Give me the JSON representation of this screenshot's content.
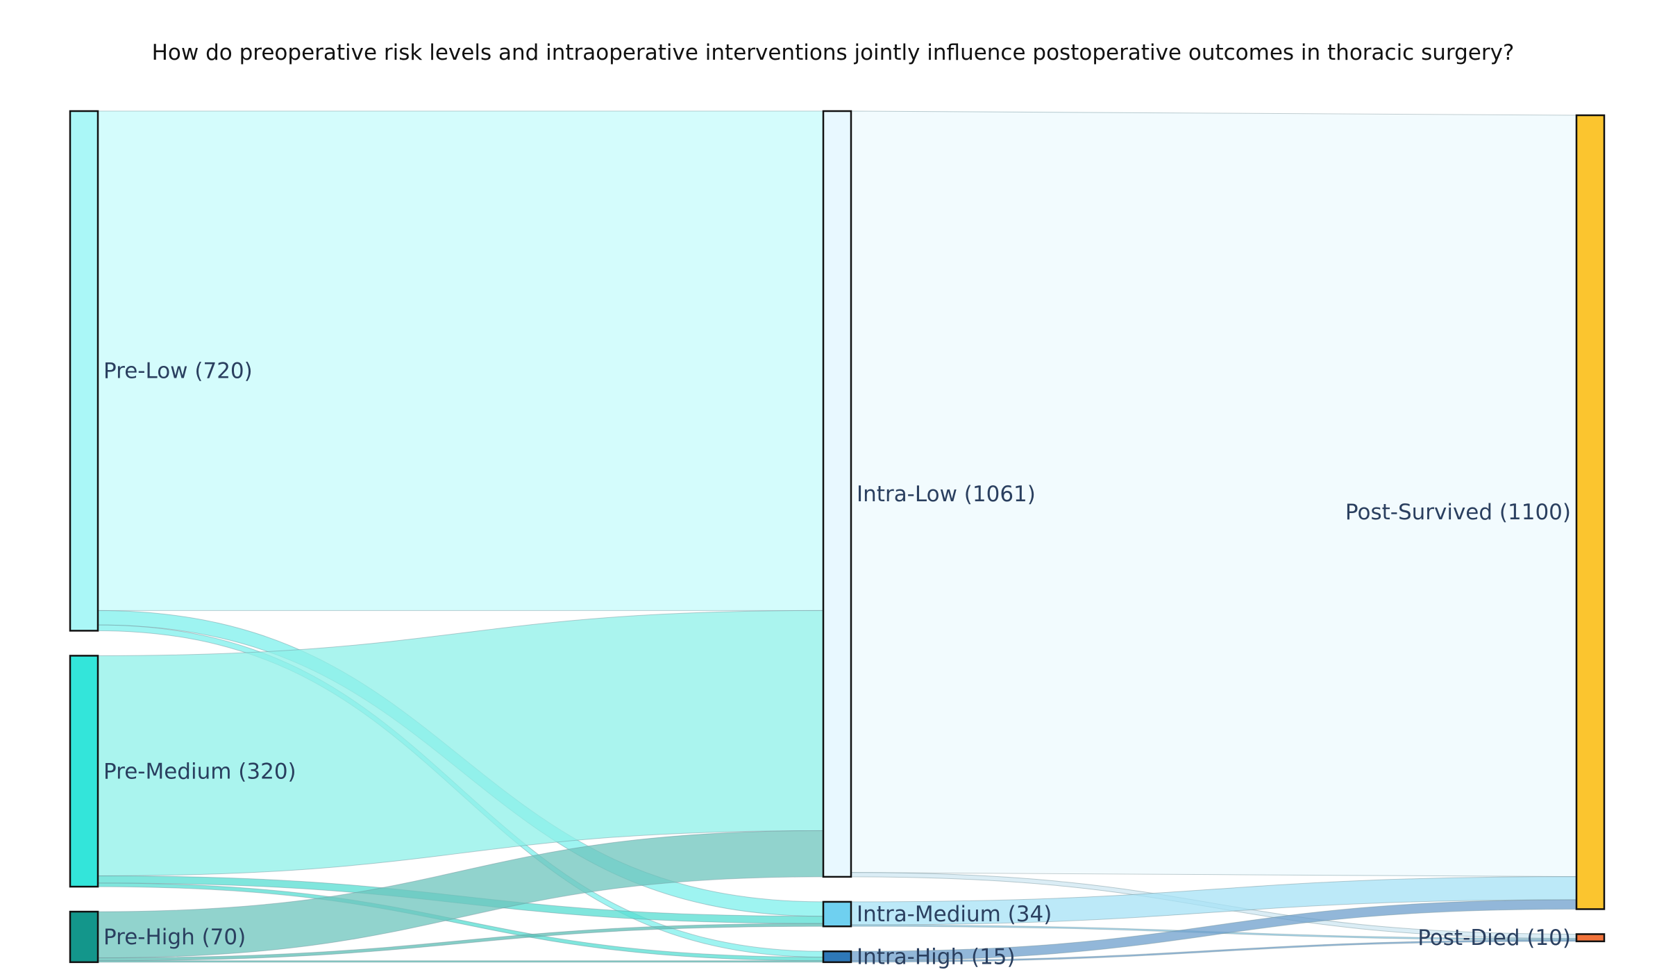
{
  "chart_data": {
    "type": "sankey",
    "title": "How do preoperative risk levels and intraoperative interventions jointly influence postoperative outcomes in thoracic surgery?",
    "nodes": [
      {
        "id": "pre_low",
        "label": "Pre-Low (720)",
        "value": 720,
        "color": "#aaf7f7"
      },
      {
        "id": "pre_med",
        "label": "Pre-Medium (320)",
        "value": 320,
        "color": "#33e5da"
      },
      {
        "id": "pre_high",
        "label": "Pre-High (70)",
        "value": 70,
        "color": "#13968b"
      },
      {
        "id": "intra_low",
        "label": "Intra-Low (1061)",
        "value": 1061,
        "color": "#e8f8ff"
      },
      {
        "id": "intra_med",
        "label": "Intra-Medium (34)",
        "value": 34,
        "color": "#6fd0f0"
      },
      {
        "id": "intra_high",
        "label": "Intra-High (15)",
        "value": 15,
        "color": "#2e78b8"
      },
      {
        "id": "post_surv",
        "label": "Post-Survived (1100)",
        "value": 1100,
        "color": "#fbc52f"
      },
      {
        "id": "post_died",
        "label": "Post-Died (10)",
        "value": 10,
        "color": "#f2733a"
      }
    ],
    "links": [
      {
        "source": "pre_low",
        "target": "intra_low",
        "value": 692,
        "color": "#c5fbfb"
      },
      {
        "source": "pre_low",
        "target": "intra_med",
        "value": 20,
        "color": "#7ef0ec"
      },
      {
        "source": "pre_low",
        "target": "intra_high",
        "value": 8,
        "color": "#7ef0ec"
      },
      {
        "source": "pre_med",
        "target": "intra_low",
        "value": 305,
        "color": "#8ef0e8"
      },
      {
        "source": "pre_med",
        "target": "intra_med",
        "value": 10,
        "color": "#55ddd2"
      },
      {
        "source": "pre_med",
        "target": "intra_high",
        "value": 5,
        "color": "#55ddd2"
      },
      {
        "source": "pre_high",
        "target": "intra_low",
        "value": 64,
        "color": "#6cc4bc"
      },
      {
        "source": "pre_high",
        "target": "intra_med",
        "value": 4,
        "color": "#5cbdb4"
      },
      {
        "source": "pre_high",
        "target": "intra_high",
        "value": 2,
        "color": "#5cbdb4"
      },
      {
        "source": "intra_low",
        "target": "post_surv",
        "value": 1055,
        "color": "#eef9fe"
      },
      {
        "source": "intra_low",
        "target": "post_died",
        "value": 6,
        "color": "#cfe7f2"
      },
      {
        "source": "intra_med",
        "target": "post_surv",
        "value": 32,
        "color": "#a6e2f6"
      },
      {
        "source": "intra_med",
        "target": "post_died",
        "value": 2,
        "color": "#8fcbe4"
      },
      {
        "source": "intra_high",
        "target": "post_surv",
        "value": 13,
        "color": "#6e9fcc"
      },
      {
        "source": "intra_high",
        "target": "post_died",
        "value": 2,
        "color": "#6e9fcc"
      }
    ]
  }
}
